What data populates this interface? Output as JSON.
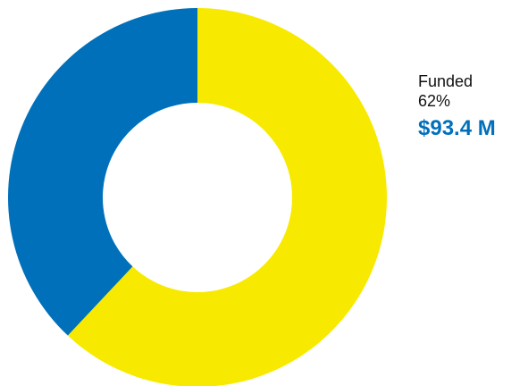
{
  "chart_data": {
    "type": "pie",
    "subtype": "donut",
    "slices": [
      {
        "name": "Funded",
        "value": 62,
        "color": "#f7ea00"
      },
      {
        "name": "",
        "value": 38,
        "color": "#0070bb"
      }
    ],
    "start_angle_deg": 0,
    "direction": "clockwise",
    "legend": "right"
  },
  "label": {
    "name": "Funded",
    "percent": "62%",
    "amount": "$93.4 M",
    "amount_color": "#0070bb"
  }
}
